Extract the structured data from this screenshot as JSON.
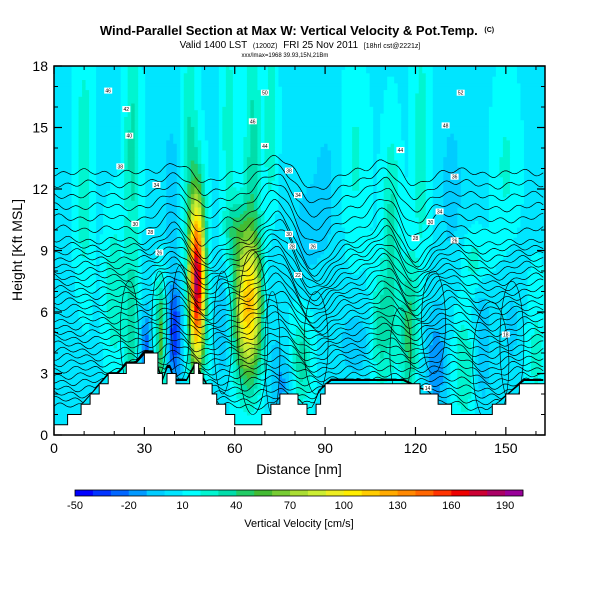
{
  "chart_data": {
    "type": "heatmap",
    "title": "Wind-Parallel Section at Max W: Vertical Velocity & Pot.Temp.",
    "title_badge": "(C)",
    "subtitle_main": "Valid 1400 LST",
    "subtitle_paren": "(1200Z)",
    "subtitle_date": "FRI 25 Nov 2011",
    "subtitle_run": "[18hrl cst@2221z]",
    "subtitle_line2": "xxx/lmax=1968 39.93,15N,21Bm",
    "xlabel": "Distance [nm]",
    "ylabel": "Height [Kft MSL]",
    "xlim": [
      0,
      163
    ],
    "ylim": [
      0,
      18
    ],
    "xticks": [
      0,
      30,
      60,
      90,
      120,
      150
    ],
    "yticks": [
      0,
      3,
      6,
      9,
      12,
      15,
      18
    ],
    "colorbar": {
      "label": "Vertical Velocity [cm/s]",
      "ticks": [
        -50,
        -20,
        10,
        40,
        70,
        100,
        130,
        160,
        190
      ],
      "min": -50,
      "max": 200,
      "step": 10,
      "colors": [
        "#0000ff",
        "#0033ff",
        "#0066ff",
        "#0099ff",
        "#00ccff",
        "#00e5ff",
        "#00ffff",
        "#00f5d0",
        "#00ddaa",
        "#22cc66",
        "#44bb33",
        "#77cc33",
        "#aadd33",
        "#ccee33",
        "#eeee22",
        "#ffee00",
        "#ffcc00",
        "#ffaa00",
        "#ff8800",
        "#ff6600",
        "#ff3300",
        "#ee0000",
        "#cc0033",
        "#aa0066",
        "#990099"
      ]
    },
    "background_w": 8,
    "terrain_kft": [
      [
        0,
        0.4
      ],
      [
        3,
        0.6
      ],
      [
        6,
        1.0
      ],
      [
        9,
        1.4
      ],
      [
        12,
        1.9
      ],
      [
        15,
        2.4
      ],
      [
        18,
        2.9
      ],
      [
        21,
        2.9
      ],
      [
        24,
        3.4
      ],
      [
        27,
        3.4
      ],
      [
        30,
        3.9
      ],
      [
        33,
        3.9
      ],
      [
        34,
        3.4
      ],
      [
        36,
        2.6
      ],
      [
        38,
        3.4
      ],
      [
        40,
        2.6
      ],
      [
        44,
        2.6
      ],
      [
        47,
        3.4
      ],
      [
        49,
        2.8
      ],
      [
        52,
        2.1
      ],
      [
        55,
        1.4
      ],
      [
        58,
        0.9
      ],
      [
        61,
        0.6
      ],
      [
        64,
        0.4
      ],
      [
        67,
        0.4
      ],
      [
        70,
        1.0
      ],
      [
        73,
        1.5
      ],
      [
        76,
        1.9
      ],
      [
        79,
        1.9
      ],
      [
        82,
        1.6
      ],
      [
        85,
        1.0
      ],
      [
        88,
        2.1
      ],
      [
        92,
        2.6
      ],
      [
        100,
        2.6
      ],
      [
        110,
        2.6
      ],
      [
        116,
        2.6
      ],
      [
        120,
        2.3
      ],
      [
        124,
        2.1
      ],
      [
        128,
        1.6
      ],
      [
        132,
        1.2
      ],
      [
        136,
        1.0
      ],
      [
        140,
        1.0
      ],
      [
        144,
        1.2
      ],
      [
        148,
        1.6
      ],
      [
        152,
        2.1
      ],
      [
        156,
        2.6
      ],
      [
        160,
        2.6
      ],
      [
        163,
        2.6
      ]
    ],
    "w_cells": [
      {
        "x": 47.5,
        "y": 7.5,
        "sx": 1.8,
        "sy": 2.8,
        "w": 175
      },
      {
        "x": 64.5,
        "y": 6.3,
        "sx": 3.2,
        "sy": 2.5,
        "w": 110
      },
      {
        "x": 40.0,
        "y": 5.0,
        "sx": 1.8,
        "sy": 1.8,
        "w": -45
      },
      {
        "x": 56.0,
        "y": 5.5,
        "sx": 1.6,
        "sy": 2.0,
        "w": -20
      },
      {
        "x": 30.5,
        "y": 4.0,
        "sx": 1.3,
        "sy": 1.5,
        "w": -35
      },
      {
        "x": 35.5,
        "y": 4.8,
        "sx": 1.2,
        "sy": 2.0,
        "w": 48
      },
      {
        "x": 25.5,
        "y": 5.0,
        "sx": 1.5,
        "sy": 2.5,
        "w": 30
      },
      {
        "x": 20.0,
        "y": 7.0,
        "sx": 2.2,
        "sy": 2.5,
        "w": 22
      },
      {
        "x": 72.0,
        "y": 6.5,
        "sx": 2.0,
        "sy": 3.0,
        "w": -12
      },
      {
        "x": 76.0,
        "y": 2.5,
        "sx": 2.5,
        "sy": 1.2,
        "w": -20
      },
      {
        "x": 82.0,
        "y": 3.5,
        "sx": 2.5,
        "sy": 1.5,
        "w": 28
      },
      {
        "x": 100.0,
        "y": 4.5,
        "sx": 4.0,
        "sy": 1.2,
        "w": -15
      },
      {
        "x": 108.0,
        "y": 5.0,
        "sx": 2.0,
        "sy": 2.0,
        "w": 25
      },
      {
        "x": 112.0,
        "y": 6.0,
        "sx": 2.0,
        "sy": 2.5,
        "w": 18
      },
      {
        "x": 118.0,
        "y": 5.0,
        "sx": 2.0,
        "sy": 2.5,
        "w": 38
      },
      {
        "x": 127.0,
        "y": 3.5,
        "sx": 3.0,
        "sy": 2.0,
        "w": -25
      },
      {
        "x": 136.0,
        "y": 3.3,
        "sx": 3.0,
        "sy": 2.0,
        "w": 22
      },
      {
        "x": 142.0,
        "y": 4.5,
        "sx": 2.0,
        "sy": 2.5,
        "w": -18
      },
      {
        "x": 152.0,
        "y": 5.5,
        "sx": 3.0,
        "sy": 2.5,
        "w": -10
      },
      {
        "x": 140.0,
        "y": 8.5,
        "sx": 3.0,
        "sy": 1.0,
        "w": 18
      },
      {
        "x": 160.0,
        "y": 4.0,
        "sx": 2.5,
        "sy": 2.5,
        "w": 15
      },
      {
        "x": 5.0,
        "y": 2.5,
        "sx": 3.0,
        "sy": 2.0,
        "w": -8
      },
      {
        "x": 10.0,
        "y": 13.0,
        "sx": 2.0,
        "sy": 4.0,
        "w": 22
      },
      {
        "x": 26.0,
        "y": 14.0,
        "sx": 1.8,
        "sy": 4.0,
        "w": 26
      },
      {
        "x": 39.0,
        "y": 12.0,
        "sx": 2.0,
        "sy": 2.5,
        "w": -15
      },
      {
        "x": 45.0,
        "y": 14.5,
        "sx": 1.8,
        "sy": 4.0,
        "w": 22
      },
      {
        "x": 58.0,
        "y": 15.0,
        "sx": 1.8,
        "sy": 3.5,
        "w": 18
      },
      {
        "x": 66.0,
        "y": 14.0,
        "sx": 2.0,
        "sy": 4.0,
        "w": 26
      },
      {
        "x": 72.0,
        "y": 15.0,
        "sx": 1.5,
        "sy": 3.5,
        "w": 20
      },
      {
        "x": 90.0,
        "y": 12.0,
        "sx": 3.0,
        "sy": 2.5,
        "w": -12
      },
      {
        "x": 100.0,
        "y": 13.5,
        "sx": 3.0,
        "sy": 3.0,
        "w": 14
      },
      {
        "x": 112.0,
        "y": 11.0,
        "sx": 2.0,
        "sy": 3.0,
        "w": 22
      },
      {
        "x": 122.0,
        "y": 14.0,
        "sx": 2.0,
        "sy": 4.0,
        "w": 20
      },
      {
        "x": 132.0,
        "y": 12.0,
        "sx": 3.0,
        "sy": 3.0,
        "w": -12
      },
      {
        "x": 150.0,
        "y": 13.0,
        "sx": 3.0,
        "sy": 3.0,
        "w": 14
      },
      {
        "x": 84.0,
        "y": 10.0,
        "sx": 3.0,
        "sy": 1.5,
        "w": -15
      },
      {
        "x": 60.0,
        "y": 10.0,
        "sx": 2.5,
        "sy": 1.0,
        "w": 22
      }
    ],
    "isentropes": {
      "count": 34,
      "base_kft": 1.4,
      "spacing_low": 0.3,
      "spacing_high": 0.55,
      "break_kft": 9.5,
      "wave_features": [
        {
          "x": 80,
          "y": 9.5,
          "amp": 1.8,
          "width": 9
        },
        {
          "x": 115,
          "y": 10.0,
          "amp": 1.3,
          "width": 7
        },
        {
          "x": 45,
          "y": 9.5,
          "amp": 1.0,
          "width": 7
        },
        {
          "x": 138,
          "y": 6.0,
          "amp": 0.5,
          "width": 10
        }
      ],
      "labels": [
        {
          "x": 18,
          "y": 16.8,
          "t": "46"
        },
        {
          "x": 24,
          "y": 15.9,
          "t": "42"
        },
        {
          "x": 25,
          "y": 14.6,
          "t": "40"
        },
        {
          "x": 22,
          "y": 13.1,
          "t": "38"
        },
        {
          "x": 34,
          "y": 12.2,
          "t": "34"
        },
        {
          "x": 27,
          "y": 10.3,
          "t": "30"
        },
        {
          "x": 32,
          "y": 9.9,
          "t": "28"
        },
        {
          "x": 35,
          "y": 8.9,
          "t": "26"
        },
        {
          "x": 70,
          "y": 16.7,
          "t": "50"
        },
        {
          "x": 66,
          "y": 15.3,
          "t": "46"
        },
        {
          "x": 70,
          "y": 14.1,
          "t": "44"
        },
        {
          "x": 78,
          "y": 12.9,
          "t": "38"
        },
        {
          "x": 81,
          "y": 11.7,
          "t": "34"
        },
        {
          "x": 78,
          "y": 9.8,
          "t": "30"
        },
        {
          "x": 79,
          "y": 9.2,
          "t": "28"
        },
        {
          "x": 86,
          "y": 9.2,
          "t": "26"
        },
        {
          "x": 81,
          "y": 7.8,
          "t": "22"
        },
        {
          "x": 135,
          "y": 16.7,
          "t": "52"
        },
        {
          "x": 130,
          "y": 15.1,
          "t": "48"
        },
        {
          "x": 115,
          "y": 13.9,
          "t": "44"
        },
        {
          "x": 133,
          "y": 12.6,
          "t": "36"
        },
        {
          "x": 128,
          "y": 10.9,
          "t": "34"
        },
        {
          "x": 125,
          "y": 10.4,
          "t": "30"
        },
        {
          "x": 120,
          "y": 9.6,
          "t": "28"
        },
        {
          "x": 133,
          "y": 9.5,
          "t": "26"
        },
        {
          "x": 150,
          "y": 4.9,
          "t": "18"
        },
        {
          "x": 124,
          "y": 2.3,
          "t": "14"
        }
      ]
    },
    "w_zero_contours": [
      {
        "cx": 25.0,
        "cy": 5.0,
        "rx": 3.0,
        "ry": 2.5
      },
      {
        "cx": 35.0,
        "cy": 5.5,
        "rx": 2.5,
        "ry": 2.5
      },
      {
        "cx": 42.0,
        "cy": 5.5,
        "rx": 3.0,
        "ry": 2.8
      },
      {
        "cx": 56.0,
        "cy": 5.0,
        "rx": 3.0,
        "ry": 3.0
      },
      {
        "cx": 66.0,
        "cy": 5.0,
        "rx": 5.0,
        "ry": 4.0
      },
      {
        "cx": 72.5,
        "cy": 4.0,
        "rx": 2.5,
        "ry": 3.0
      },
      {
        "cx": 87.0,
        "cy": 4.5,
        "rx": 4.0,
        "ry": 2.5
      },
      {
        "cx": 115.0,
        "cy": 4.0,
        "rx": 3.5,
        "ry": 2.2
      },
      {
        "cx": 126.0,
        "cy": 5.5,
        "rx": 4.0,
        "ry": 2.5
      },
      {
        "cx": 145.0,
        "cy": 3.5,
        "rx": 6.0,
        "ry": 3.0
      },
      {
        "cx": 152.0,
        "cy": 4.5,
        "rx": 4.0,
        "ry": 3.0
      }
    ]
  }
}
